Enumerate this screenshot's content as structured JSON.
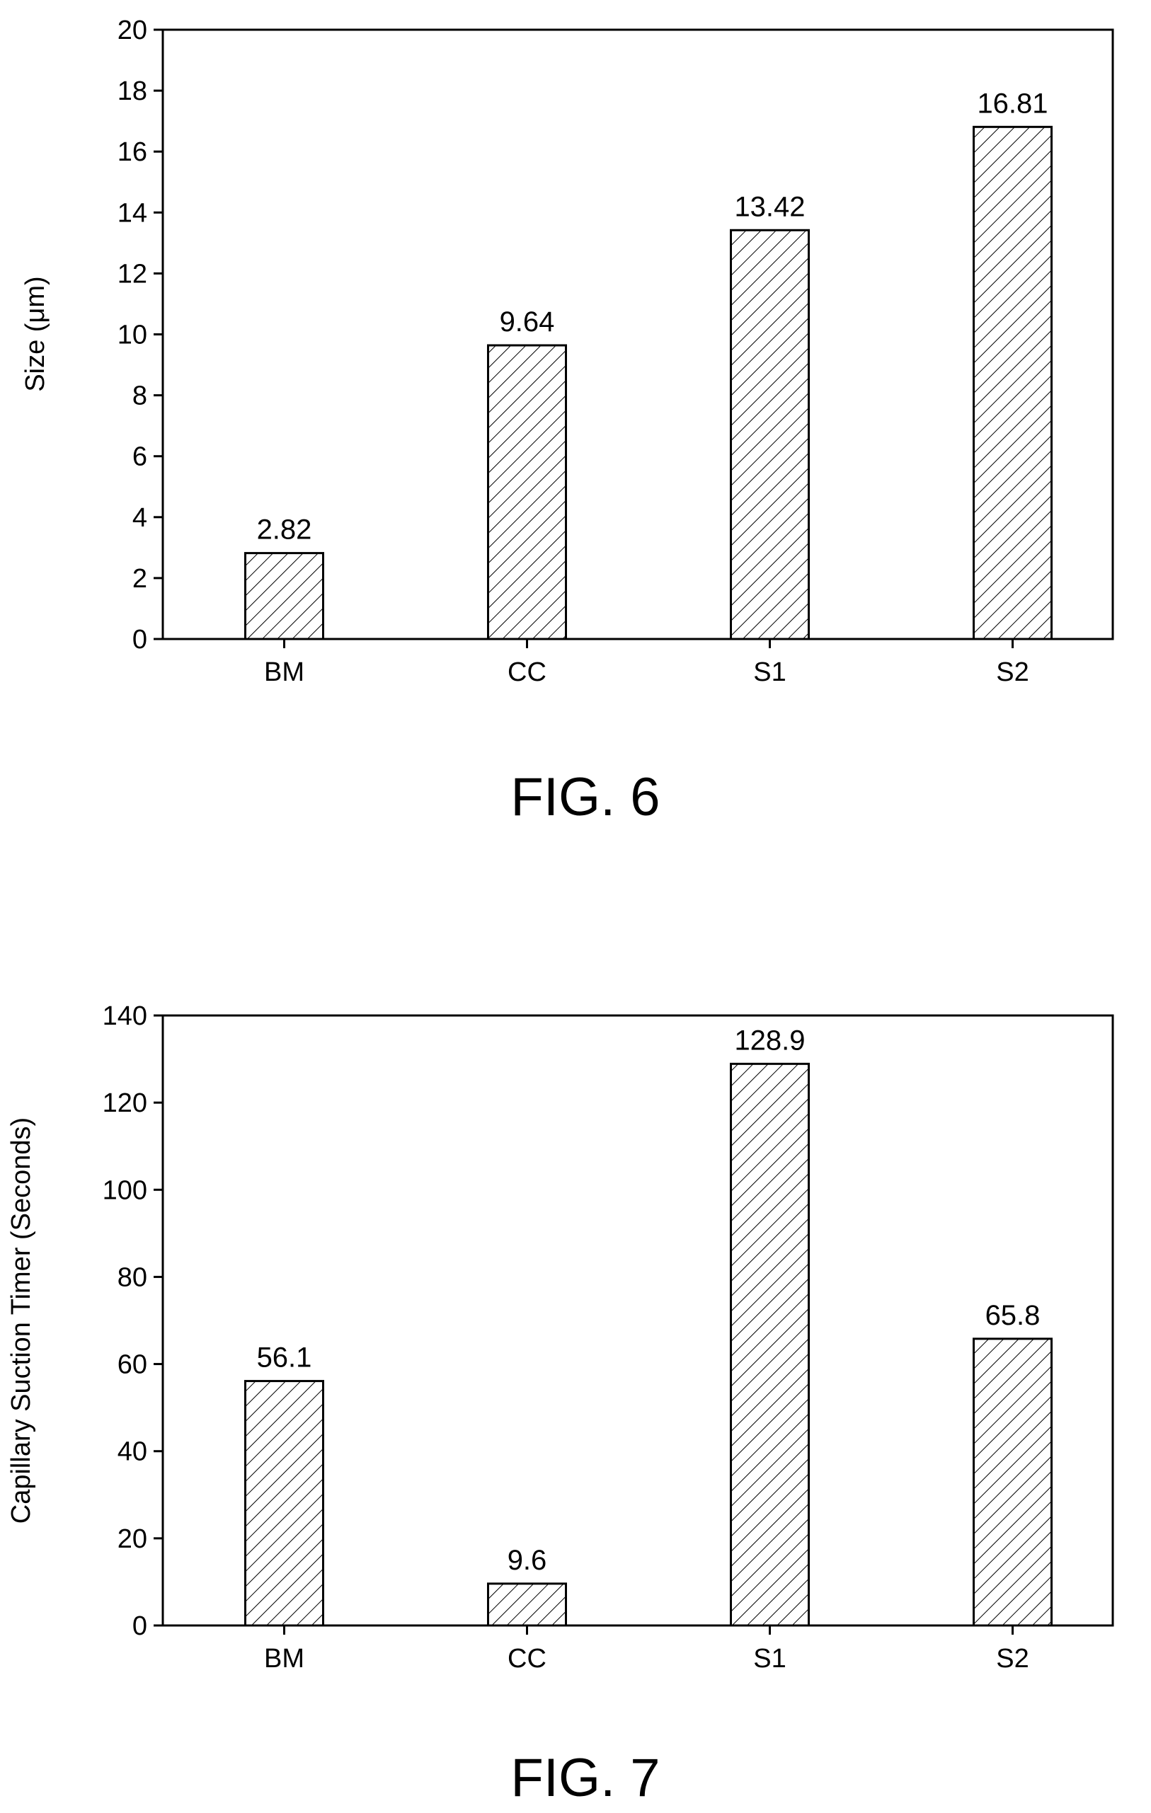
{
  "chart_data": [
    {
      "type": "bar",
      "figure_label": "FIG. 6",
      "title": "",
      "xlabel": "",
      "ylabel": "Size (μm)",
      "categories": [
        "BM",
        "CC",
        "S1",
        "S2"
      ],
      "values": [
        2.82,
        9.64,
        13.42,
        16.81
      ],
      "data_labels": [
        "2.82",
        "9.64",
        "13.42",
        "16.81"
      ],
      "ylim": [
        0,
        20
      ],
      "yticks": [
        0,
        2,
        4,
        6,
        8,
        10,
        12,
        14,
        16,
        18,
        20
      ],
      "grid": false,
      "legend": "none",
      "bar_fill": "diagonal-hatch",
      "colors": {
        "bar_stroke": "#000000",
        "hatch": "#000000",
        "background": "#ffffff"
      }
    },
    {
      "type": "bar",
      "figure_label": "FIG. 7",
      "title": "",
      "xlabel": "",
      "ylabel": "Capillary Suction Timer (Seconds)",
      "categories": [
        "BM",
        "CC",
        "S1",
        "S2"
      ],
      "values": [
        56.1,
        9.6,
        128.9,
        65.8
      ],
      "data_labels": [
        "56.1",
        "9.6",
        "128.9",
        "65.8"
      ],
      "ylim": [
        0,
        140
      ],
      "yticks": [
        0,
        20,
        40,
        60,
        80,
        100,
        120,
        140
      ],
      "grid": false,
      "legend": "none",
      "bar_fill": "diagonal-hatch",
      "colors": {
        "bar_stroke": "#000000",
        "hatch": "#000000",
        "background": "#ffffff"
      }
    }
  ]
}
